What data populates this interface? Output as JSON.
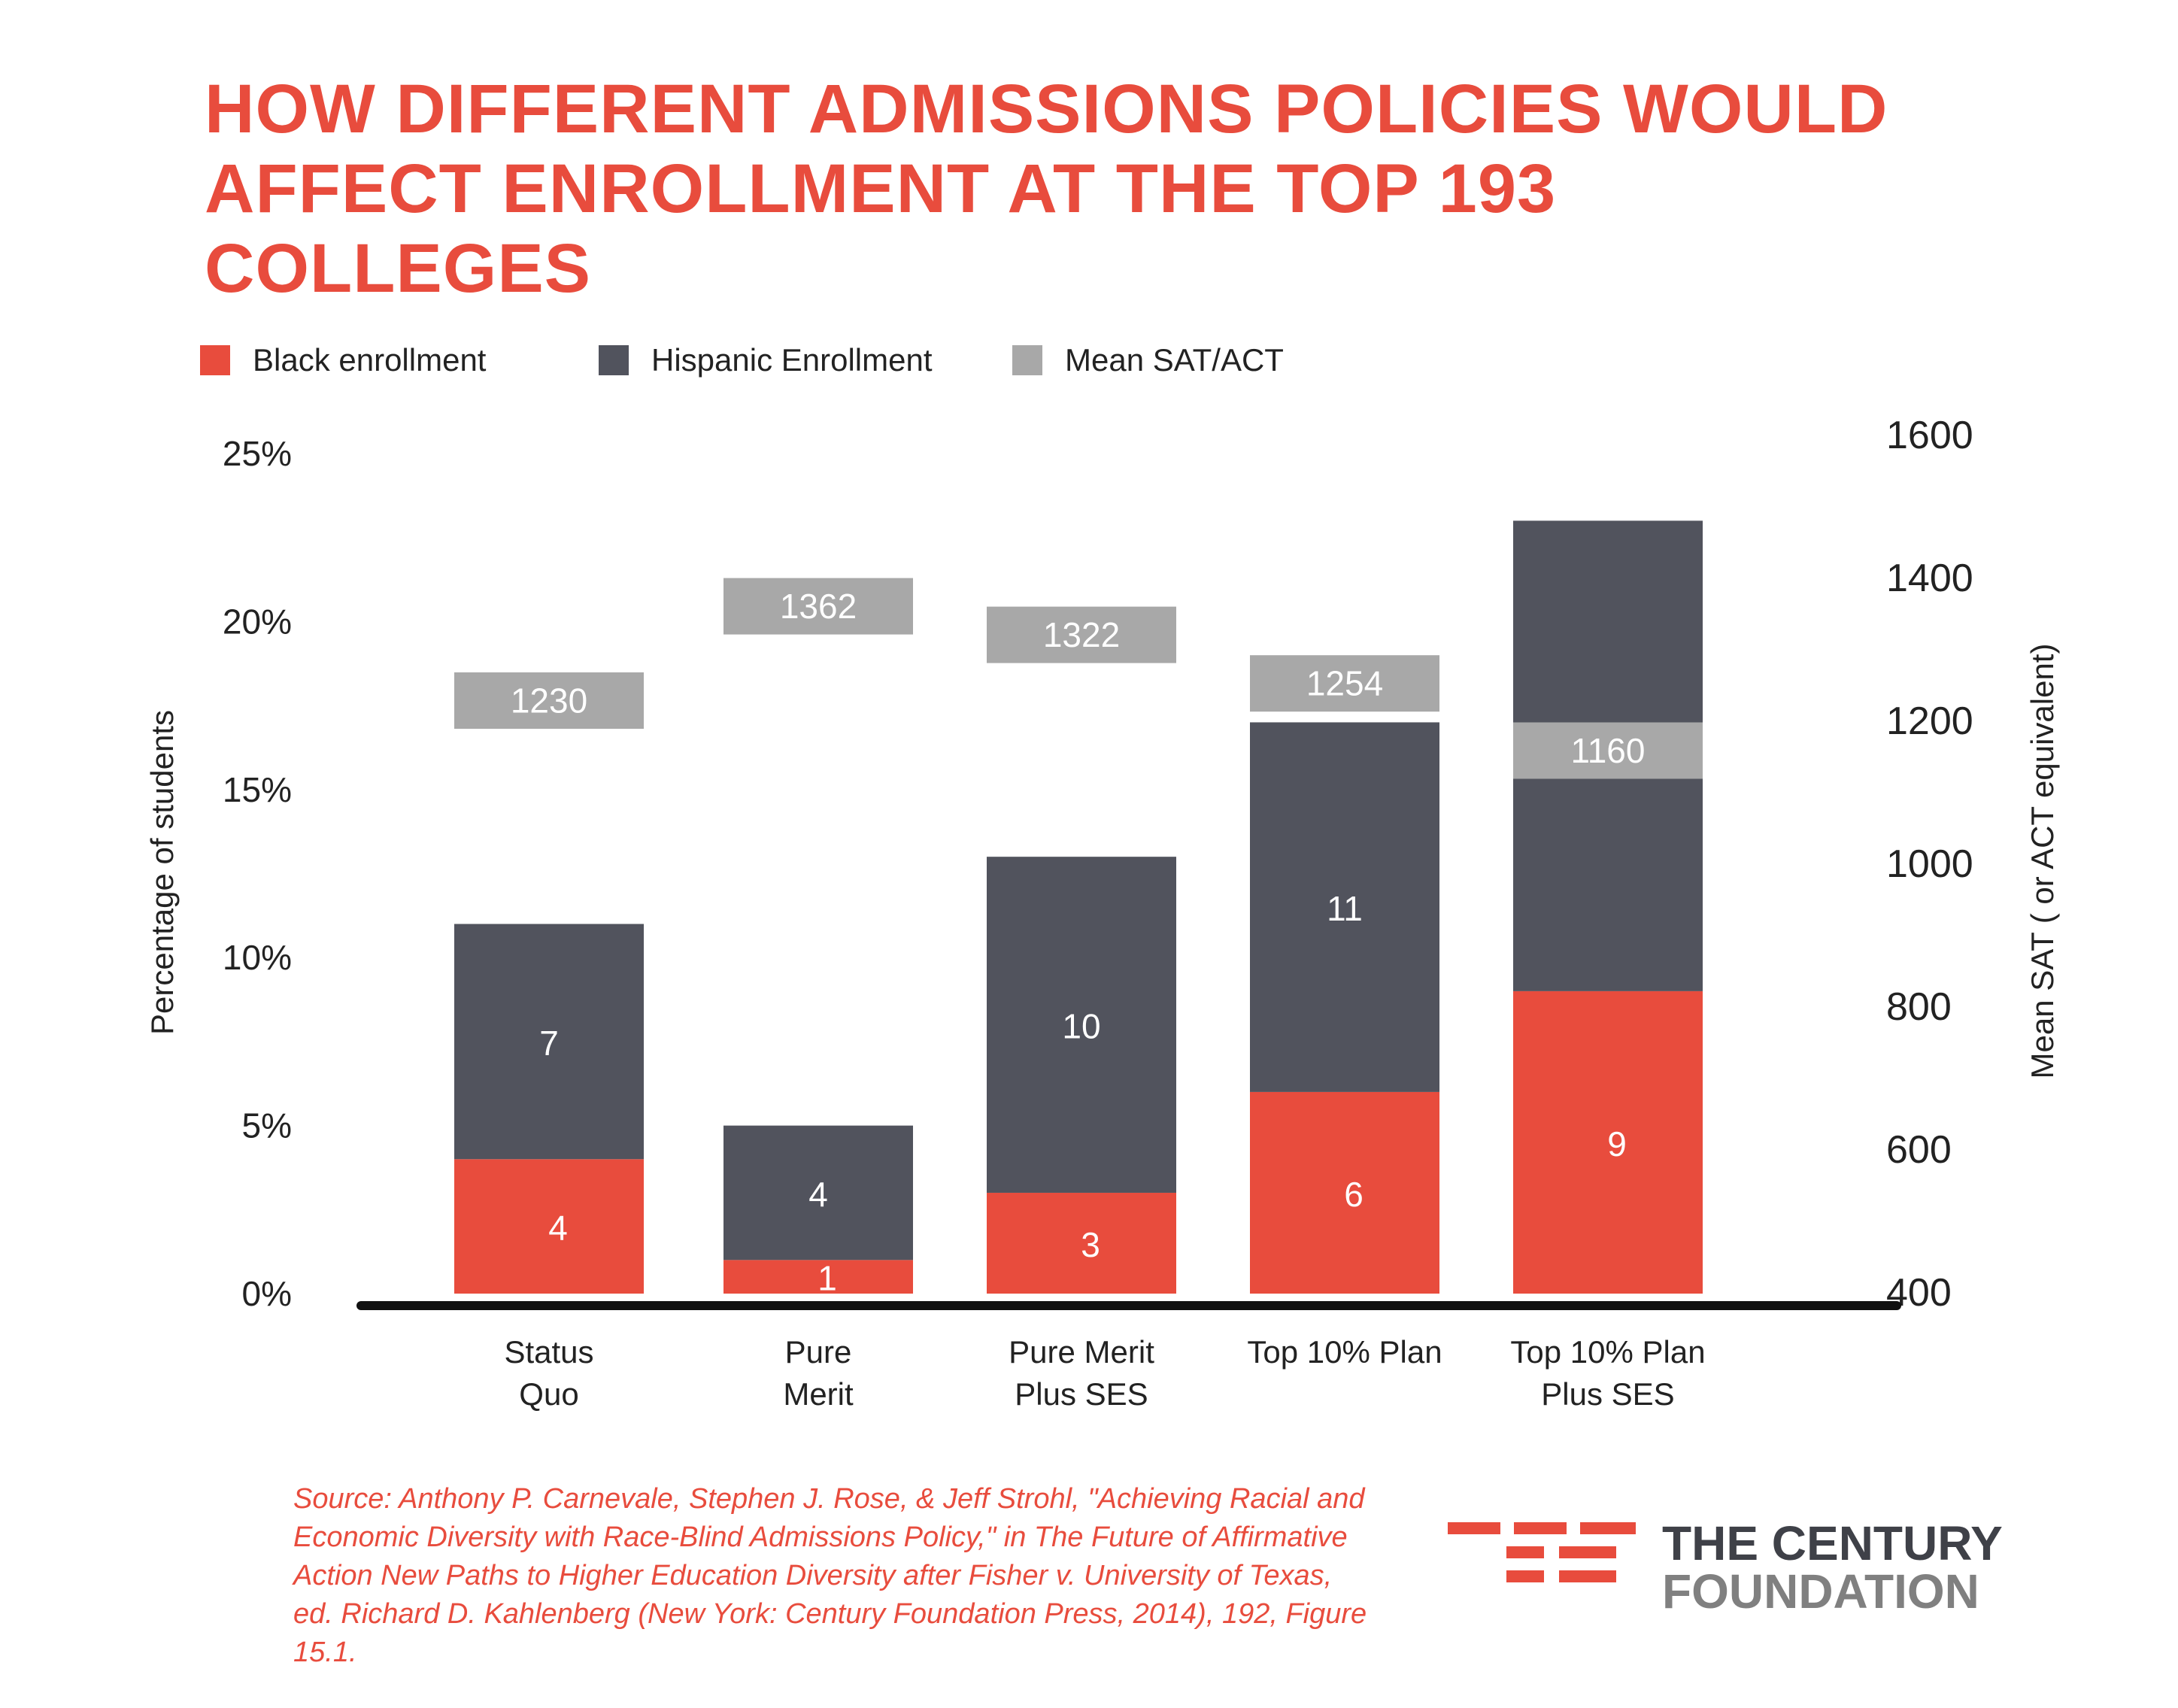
{
  "title": "HOW DIFFERENT ADMISSIONS POLICIES WOULD AFFECT ENROLLMENT AT THE TOP 193 COLLEGES",
  "legend": [
    {
      "label": "Black enrollment",
      "color": "#e84c3d"
    },
    {
      "label": "Hispanic Enrollment",
      "color": "#51535d"
    },
    {
      "label": "Mean SAT/ACT",
      "color": "#a8a8a8"
    }
  ],
  "chart_data": {
    "type": "bar",
    "stacked": true,
    "categories": [
      [
        "Status",
        "Quo"
      ],
      [
        "Pure",
        "Merit"
      ],
      [
        "Pure Merit",
        "Plus SES"
      ],
      [
        "Top 10% Plan"
      ],
      [
        "Top 10% Plan",
        "Plus SES"
      ]
    ],
    "series": [
      {
        "name": "Black enrollment",
        "values": [
          4,
          1,
          3,
          6,
          9
        ],
        "color": "#e84c3d",
        "axis": "left"
      },
      {
        "name": "Hispanic Enrollment",
        "values": [
          7,
          4,
          10,
          11,
          14
        ],
        "color": "#51535d",
        "axis": "left"
      }
    ],
    "sat": {
      "name": "Mean SAT/ACT",
      "values": [
        1230,
        1362,
        1322,
        1254,
        1160
      ],
      "color": "#a8a8a8",
      "axis": "right"
    },
    "y_left": {
      "label": "Percentage of students",
      "min": 0,
      "max": 25,
      "ticks": [
        "0%",
        "5%",
        "10%",
        "15%",
        "20%",
        "25%"
      ]
    },
    "y_right": {
      "label": "Mean SAT ( or ACT equivalent)",
      "min": 400,
      "max": 1600,
      "ticks": [
        "400",
        "600",
        "800",
        "1000",
        "1200",
        "1400",
        "1600"
      ]
    }
  },
  "source": "Source: Anthony P. Carnevale, Stephen J. Rose, & Jeff Strohl, \"Achieving Racial and Economic Diversity with Race-Blind Admissions Policy,\" in The Future of Affirmative Action New Paths to Higher Education Diversity after Fisher v. University of Texas, ed. Richard D. Kahlenberg (New York: Century Foundation Press, 2014), 192, Figure 15.1.",
  "logo": {
    "line1": "THE CENTURY",
    "line2": "FOUNDATION"
  }
}
